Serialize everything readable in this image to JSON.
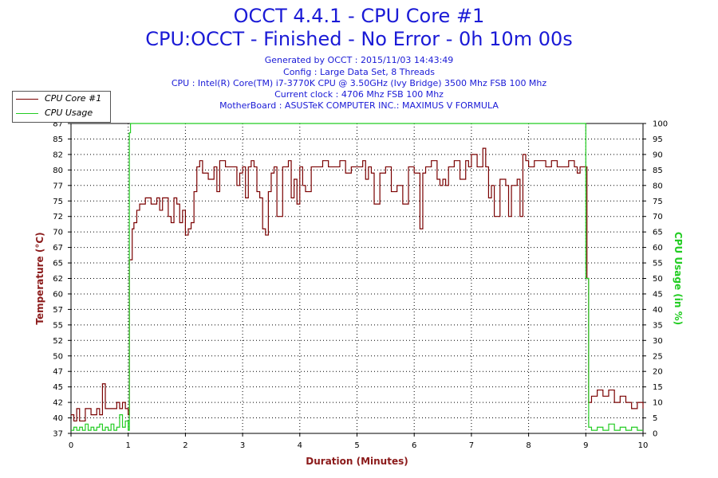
{
  "header": {
    "title": "OCCT 4.4.1 - CPU Core #1",
    "subtitle": "CPU:OCCT - Finished - No Error - 0h 10m 00s",
    "info_lines": [
      "Generated by OCCT : 2015/11/03 14:43:49",
      "Config : Large Data Set, 8 Threads",
      "CPU : Intel(R) Core(TM) i7-3770K CPU @ 3.50GHz (Ivy Bridge) 3500 Mhz FSB 100 Mhz",
      "Current clock : 4706 Mhz FSB 100 Mhz",
      "MotherBoard : ASUSTeK COMPUTER INC.: MAXIMUS V FORMULA"
    ]
  },
  "colors": {
    "title": "#1a1ad6",
    "temperature": "#7a0000",
    "usage": "#22cc22",
    "axis_label_left": "#8b1a1a",
    "axis_label_right": "#22cc22",
    "xlabel": "#8b1a1a"
  },
  "chart_data": {
    "type": "line",
    "xlabel": "Duration (Minutes)",
    "ylabel": "Temperature (°C)",
    "y2label": "CPU Usage (in %)",
    "xlim": [
      0,
      10
    ],
    "ylim": [
      37,
      87
    ],
    "y2lim": [
      0,
      100
    ],
    "x_ticks": [
      "0",
      "1",
      "2",
      "3",
      "4",
      "5",
      "6",
      "7",
      "8",
      "9",
      "10"
    ],
    "y_ticks": [
      "37",
      "40",
      "42",
      "45",
      "47",
      "50",
      "52",
      "55",
      "57",
      "60",
      "62",
      "65",
      "67",
      "70",
      "72",
      "75",
      "77",
      "80",
      "82",
      "85",
      "87"
    ],
    "y2_ticks": [
      "0",
      "5",
      "10",
      "15",
      "20",
      "25",
      "30",
      "35",
      "40",
      "45",
      "50",
      "55",
      "60",
      "65",
      "70",
      "75",
      "80",
      "85",
      "90",
      "95",
      "100"
    ],
    "grid": true,
    "legend": [
      "CPU Core #1",
      "CPU Usage"
    ],
    "series": [
      {
        "name": "CPU Core #1",
        "axis": "left",
        "x": [
          0,
          0.05,
          0.1,
          0.15,
          0.25,
          0.35,
          0.45,
          0.5,
          0.55,
          0.6,
          0.65,
          0.75,
          0.8,
          0.85,
          0.9,
          0.95,
          1.0,
          1.02,
          1.07,
          1.1,
          1.15,
          1.2,
          1.25,
          1.3,
          1.4,
          1.5,
          1.55,
          1.6,
          1.7,
          1.75,
          1.8,
          1.85,
          1.9,
          1.95,
          2.0,
          2.05,
          2.1,
          2.15,
          2.2,
          2.25,
          2.3,
          2.4,
          2.5,
          2.55,
          2.6,
          2.7,
          2.8,
          2.9,
          2.95,
          3.0,
          3.05,
          3.1,
          3.15,
          3.2,
          3.25,
          3.3,
          3.35,
          3.4,
          3.45,
          3.5,
          3.55,
          3.6,
          3.7,
          3.8,
          3.85,
          3.9,
          3.95,
          4.0,
          4.05,
          4.1,
          4.2,
          4.3,
          4.4,
          4.5,
          4.6,
          4.7,
          4.8,
          4.9,
          5.0,
          5.1,
          5.15,
          5.2,
          5.25,
          5.3,
          5.4,
          5.5,
          5.6,
          5.7,
          5.8,
          5.9,
          6.0,
          6.1,
          6.15,
          6.2,
          6.3,
          6.4,
          6.45,
          6.5,
          6.55,
          6.6,
          6.7,
          6.8,
          6.9,
          6.95,
          7.0,
          7.1,
          7.2,
          7.25,
          7.3,
          7.35,
          7.4,
          7.5,
          7.6,
          7.65,
          7.7,
          7.8,
          7.85,
          7.9,
          7.95,
          8.0,
          8.1,
          8.2,
          8.3,
          8.4,
          8.5,
          8.6,
          8.7,
          8.8,
          8.85,
          8.9,
          8.95,
          9.0,
          9.02,
          9.05,
          9.1,
          9.2,
          9.3,
          9.4,
          9.5,
          9.6,
          9.7,
          9.8,
          9.9,
          10.0
        ],
        "values": [
          40,
          39,
          41,
          39,
          41,
          40,
          41,
          40,
          45,
          41,
          41,
          41,
          42,
          41,
          42,
          41,
          40,
          65,
          70,
          71,
          73,
          74,
          74,
          75,
          74,
          75,
          73,
          75,
          72,
          71,
          75,
          74,
          71,
          73,
          69,
          70,
          71,
          76,
          80,
          81,
          79,
          78,
          80,
          76,
          81,
          80,
          80,
          77,
          79,
          80,
          75,
          80,
          81,
          80,
          76,
          75,
          70,
          69,
          76,
          79,
          80,
          72,
          80,
          81,
          75,
          78,
          74,
          80,
          77,
          76,
          80,
          80,
          81,
          80,
          80,
          81,
          79,
          80,
          80,
          81,
          78,
          80,
          79,
          74,
          79,
          80,
          76,
          77,
          74,
          80,
          79,
          70,
          79,
          80,
          81,
          78,
          77,
          78,
          77,
          80,
          81,
          78,
          81,
          80,
          82,
          80,
          83,
          80,
          75,
          77,
          72,
          78,
          77,
          72,
          77,
          78,
          72,
          82,
          81,
          80,
          81,
          81,
          80,
          81,
          80,
          80,
          81,
          80,
          79,
          80,
          80,
          80,
          62,
          42,
          43,
          44,
          43,
          44,
          42,
          43,
          42,
          41,
          42,
          41
        ]
      },
      {
        "name": "CPU Usage",
        "axis": "right",
        "x": [
          0,
          0.05,
          0.1,
          0.15,
          0.2,
          0.25,
          0.3,
          0.35,
          0.4,
          0.45,
          0.5,
          0.55,
          0.6,
          0.65,
          0.7,
          0.75,
          0.8,
          0.85,
          0.9,
          0.95,
          1.0,
          1.02,
          1.04,
          8.97,
          9.0,
          9.05,
          9.1,
          9.2,
          9.3,
          9.4,
          9.5,
          9.6,
          9.7,
          9.8,
          9.9,
          10.0
        ],
        "values": [
          1,
          2,
          1,
          2,
          1,
          3,
          1,
          2,
          1,
          2,
          3,
          1,
          2,
          1,
          3,
          1,
          2,
          6,
          2,
          4,
          1,
          97,
          100,
          100,
          50,
          2,
          1,
          2,
          1,
          3,
          1,
          2,
          1,
          2,
          1,
          1
        ]
      }
    ]
  }
}
